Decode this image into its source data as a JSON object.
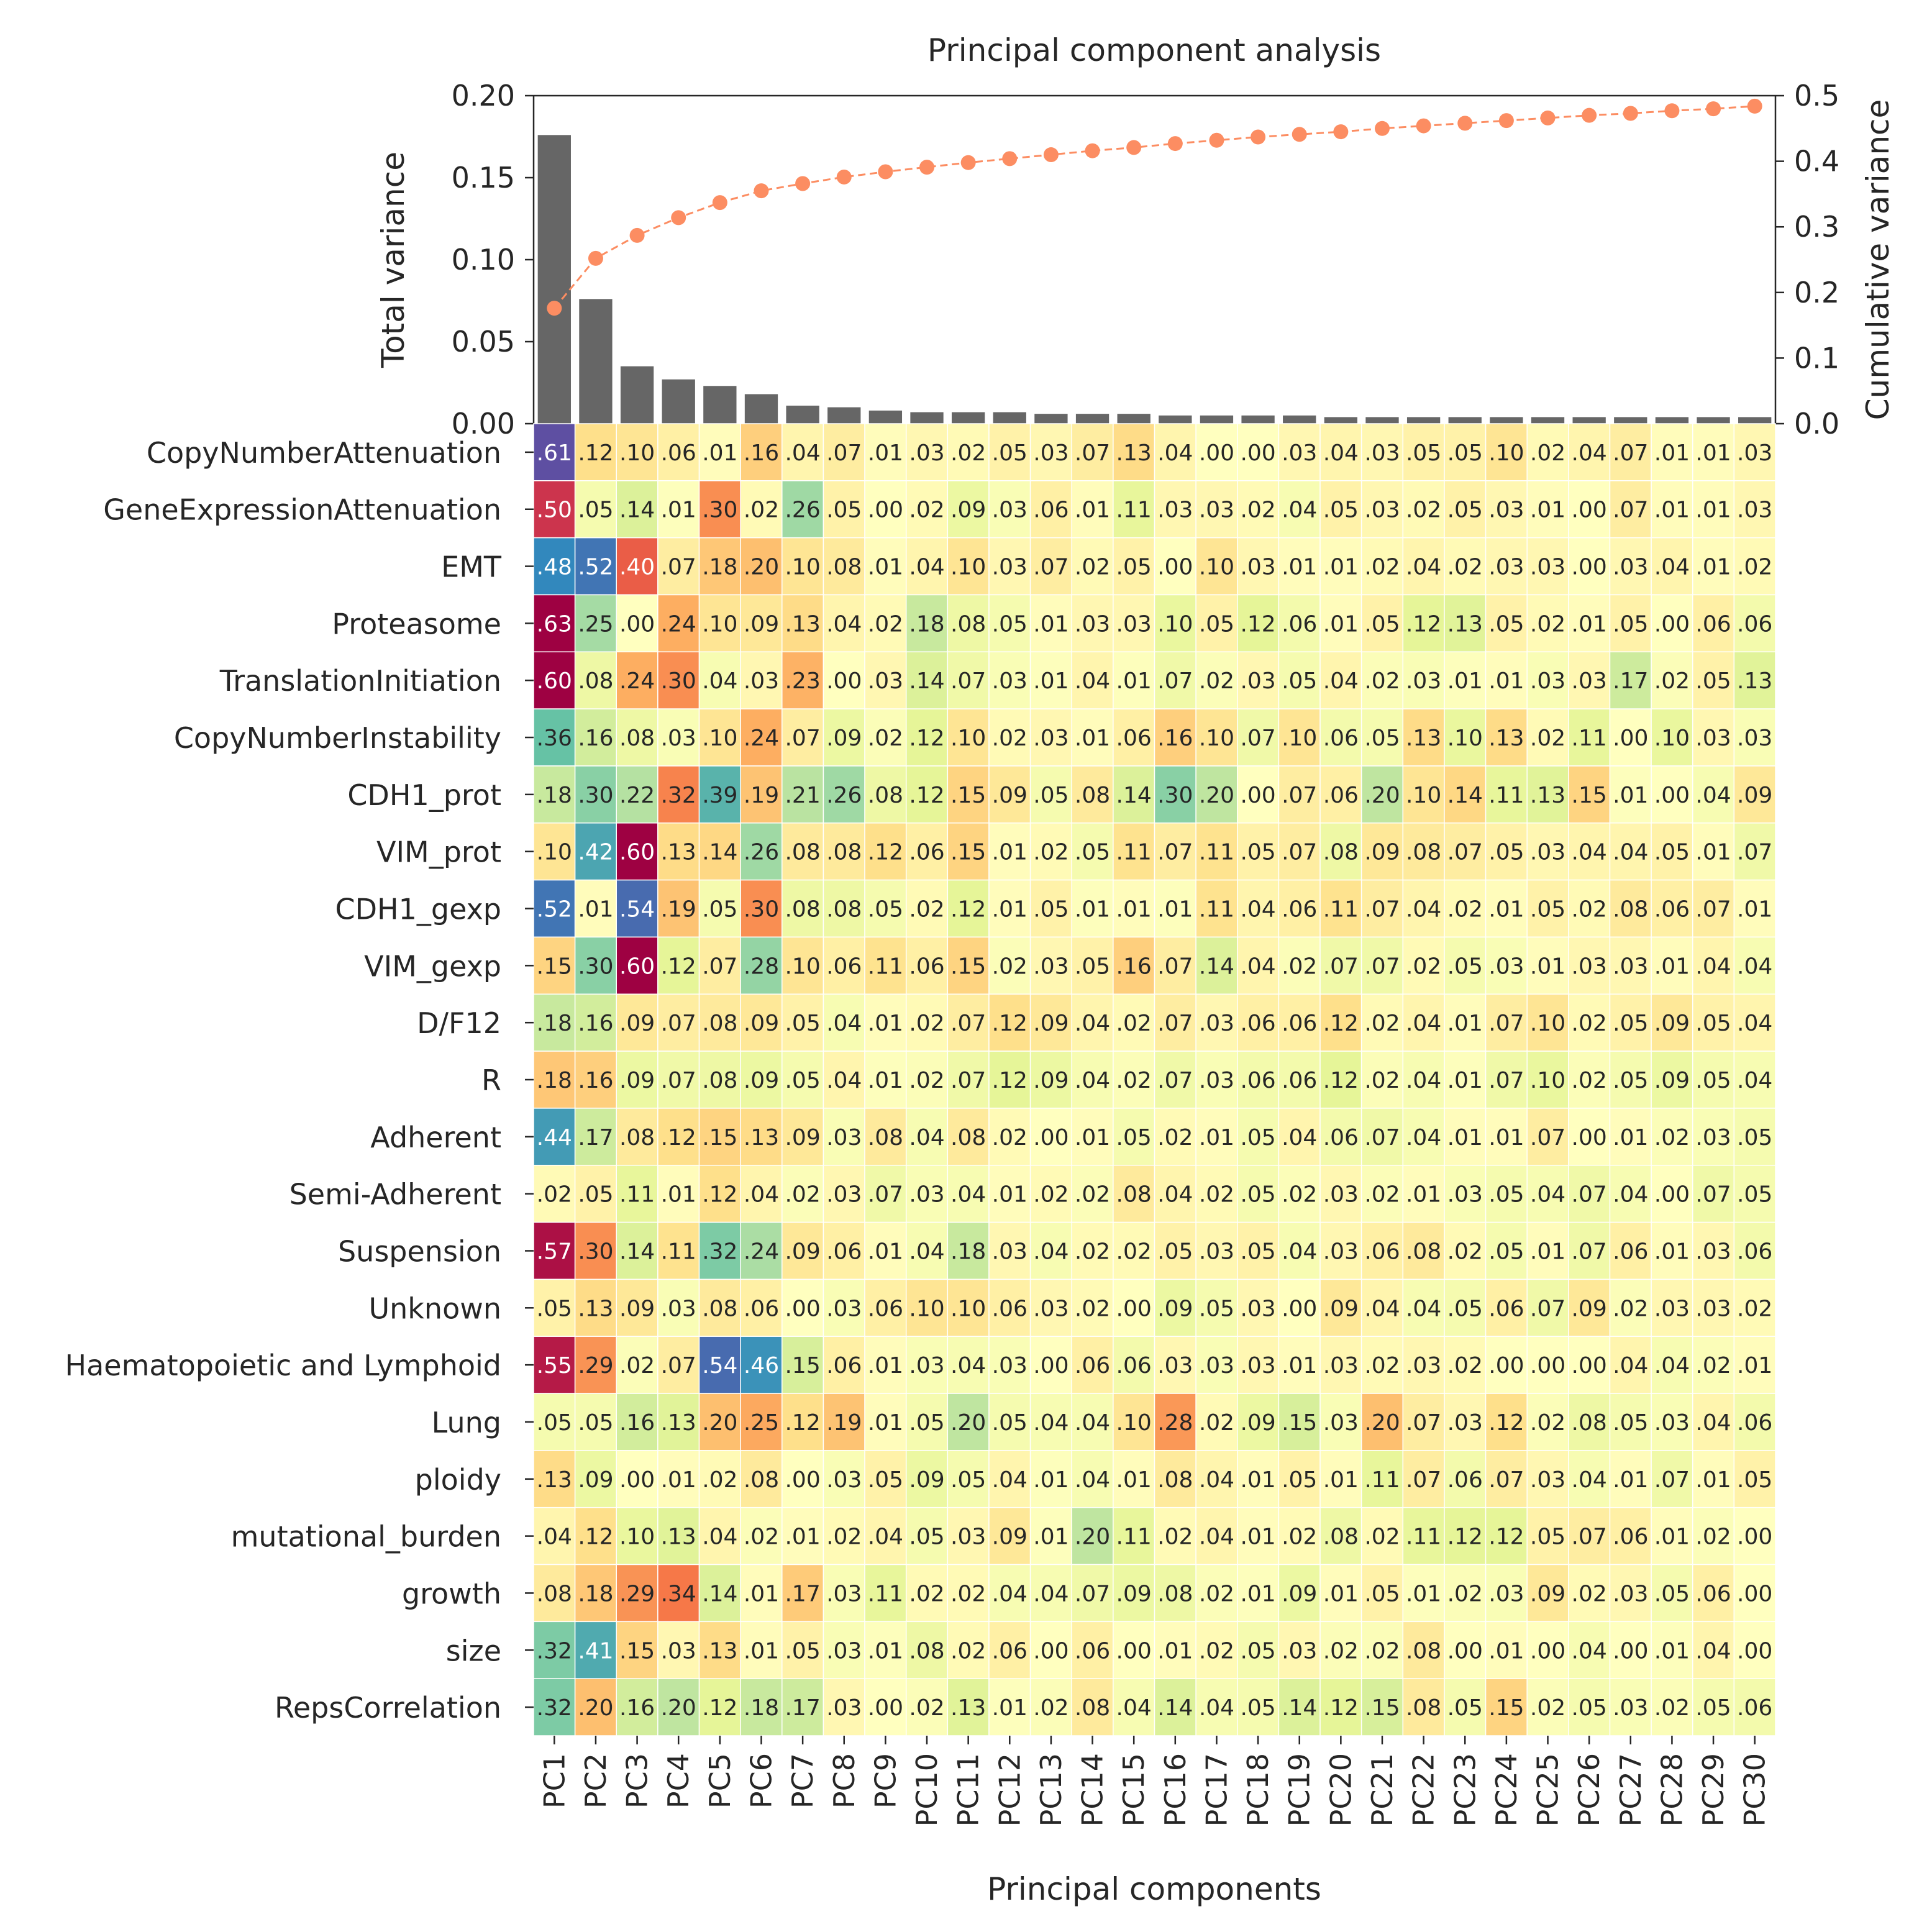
{
  "chart_data": [
    {
      "type": "bar",
      "title": "Principal component analysis",
      "ylabel": "Total variance",
      "ylabel_right": "Cumulative variance",
      "ylim": [
        0,
        0.2
      ],
      "ylim_right": [
        0,
        0.5
      ],
      "yticks": [
        "0.00",
        "0.05",
        "0.10",
        "0.15",
        "0.20"
      ],
      "yticks_right": [
        "0.0",
        "0.1",
        "0.2",
        "0.3",
        "0.4",
        "0.5"
      ],
      "categories": [
        "PC1",
        "PC2",
        "PC3",
        "PC4",
        "PC5",
        "PC6",
        "PC7",
        "PC8",
        "PC9",
        "PC10",
        "PC11",
        "PC12",
        "PC13",
        "PC14",
        "PC15",
        "PC16",
        "PC17",
        "PC18",
        "PC19",
        "PC20",
        "PC21",
        "PC22",
        "PC23",
        "PC24",
        "PC25",
        "PC26",
        "PC27",
        "PC28",
        "PC29",
        "PC30"
      ],
      "series": [
        {
          "name": "Total variance",
          "type": "bar",
          "color": "#666666",
          "values": [
            0.176,
            0.076,
            0.035,
            0.027,
            0.023,
            0.018,
            0.011,
            0.01,
            0.008,
            0.007,
            0.007,
            0.007,
            0.006,
            0.006,
            0.006,
            0.005,
            0.005,
            0.005,
            0.005,
            0.004,
            0.004,
            0.004,
            0.004,
            0.004,
            0.004,
            0.004,
            0.004,
            0.004,
            0.004,
            0.004
          ]
        },
        {
          "name": "Cumulative variance",
          "type": "line",
          "axis": "right",
          "color": "#fc8d62",
          "values": [
            0.176,
            0.252,
            0.287,
            0.314,
            0.337,
            0.355,
            0.366,
            0.376,
            0.384,
            0.391,
            0.398,
            0.404,
            0.41,
            0.416,
            0.421,
            0.427,
            0.432,
            0.437,
            0.441,
            0.445,
            0.45,
            0.454,
            0.458,
            0.462,
            0.466,
            0.47,
            0.473,
            0.477,
            0.48,
            0.484
          ]
        }
      ]
    },
    {
      "type": "heatmap",
      "xlabel": "Principal components",
      "colormap": "Spectral",
      "clim": [
        -0.6,
        0.6
      ],
      "x": [
        "PC1",
        "PC2",
        "PC3",
        "PC4",
        "PC5",
        "PC6",
        "PC7",
        "PC8",
        "PC9",
        "PC10",
        "PC11",
        "PC12",
        "PC13",
        "PC14",
        "PC15",
        "PC16",
        "PC17",
        "PC18",
        "PC19",
        "PC20",
        "PC21",
        "PC22",
        "PC23",
        "PC24",
        "PC25",
        "PC26",
        "PC27",
        "PC28",
        "PC29",
        "PC30"
      ],
      "y": [
        "CopyNumberAttenuation",
        "GeneExpressionAttenuation",
        "EMT",
        "Proteasome",
        "TranslationInitiation",
        "CopyNumberInstability",
        "CDH1_prot",
        "VIM_prot",
        "CDH1_gexp",
        "VIM_gexp",
        "D/F12",
        "R",
        "Adherent",
        "Semi-Adherent",
        "Suspension",
        "Unknown",
        "Haematopoietic and Lymphoid",
        "Lung",
        "ploidy",
        "mutational_burden",
        "growth",
        "size",
        "RepsCorrelation"
      ],
      "values": [
        [
          0.61,
          -0.12,
          -0.1,
          -0.06,
          -0.01,
          -0.16,
          -0.04,
          -0.07,
          -0.01,
          -0.03,
          -0.02,
          -0.05,
          -0.03,
          -0.07,
          -0.13,
          -0.04,
          -0.0,
          -0.0,
          -0.03,
          -0.04,
          -0.03,
          -0.05,
          -0.05,
          -0.1,
          -0.02,
          -0.04,
          -0.07,
          -0.01,
          -0.01,
          -0.03
        ],
        [
          -0.5,
          0.05,
          0.14,
          0.01,
          -0.3,
          -0.02,
          0.26,
          -0.05,
          -0.0,
          -0.02,
          0.09,
          0.03,
          -0.06,
          -0.01,
          0.11,
          -0.03,
          -0.03,
          -0.02,
          0.04,
          -0.05,
          -0.03,
          -0.02,
          -0.05,
          -0.03,
          -0.01,
          -0.0,
          -0.07,
          -0.01,
          -0.01,
          -0.03
        ],
        [
          0.48,
          0.52,
          -0.4,
          -0.07,
          -0.18,
          -0.2,
          -0.1,
          -0.08,
          -0.01,
          -0.04,
          -0.1,
          -0.03,
          -0.07,
          -0.02,
          -0.05,
          -0.0,
          -0.1,
          -0.03,
          -0.01,
          -0.01,
          -0.02,
          -0.04,
          -0.02,
          -0.03,
          -0.03,
          -0.0,
          -0.03,
          -0.04,
          -0.01,
          -0.02
        ],
        [
          -0.63,
          0.25,
          -0.0,
          -0.24,
          -0.1,
          -0.09,
          -0.13,
          -0.04,
          -0.02,
          0.18,
          0.08,
          0.05,
          -0.01,
          -0.03,
          -0.03,
          0.1,
          -0.05,
          0.12,
          0.06,
          -0.01,
          -0.05,
          0.12,
          0.13,
          -0.05,
          -0.02,
          -0.01,
          -0.05,
          -0.0,
          -0.06,
          0.06
        ],
        [
          -0.6,
          0.08,
          -0.24,
          -0.3,
          0.04,
          -0.03,
          -0.23,
          -0.0,
          -0.03,
          0.14,
          0.07,
          0.03,
          0.01,
          -0.04,
          0.01,
          0.07,
          0.02,
          -0.03,
          0.05,
          -0.04,
          0.02,
          0.03,
          0.01,
          -0.01,
          0.03,
          -0.03,
          0.17,
          0.02,
          -0.05,
          0.13
        ],
        [
          0.36,
          0.16,
          0.08,
          0.03,
          -0.1,
          -0.24,
          -0.07,
          0.09,
          0.02,
          0.12,
          -0.1,
          -0.02,
          -0.03,
          -0.01,
          -0.06,
          -0.16,
          -0.1,
          0.07,
          -0.1,
          0.06,
          0.05,
          -0.13,
          0.1,
          -0.13,
          -0.02,
          0.11,
          -0.0,
          0.1,
          -0.03,
          0.03
        ],
        [
          0.18,
          0.3,
          0.22,
          -0.32,
          0.39,
          -0.19,
          0.21,
          0.26,
          0.08,
          0.12,
          -0.15,
          -0.09,
          0.05,
          -0.08,
          0.14,
          0.3,
          0.2,
          -0.0,
          -0.07,
          -0.06,
          0.2,
          -0.1,
          -0.14,
          0.11,
          0.13,
          -0.15,
          0.01,
          -0.0,
          0.04,
          -0.09
        ],
        [
          -0.1,
          0.42,
          -0.6,
          -0.13,
          -0.14,
          0.26,
          -0.08,
          -0.08,
          -0.12,
          -0.06,
          -0.15,
          -0.01,
          -0.02,
          0.05,
          -0.11,
          -0.07,
          -0.11,
          -0.05,
          -0.07,
          0.08,
          -0.09,
          -0.08,
          -0.07,
          -0.05,
          -0.03,
          -0.04,
          -0.04,
          -0.05,
          -0.01,
          0.07
        ],
        [
          0.52,
          -0.01,
          0.54,
          -0.19,
          0.05,
          -0.3,
          0.08,
          0.08,
          0.05,
          -0.02,
          0.12,
          -0.01,
          -0.05,
          0.01,
          -0.01,
          0.01,
          -0.11,
          -0.04,
          -0.06,
          -0.11,
          -0.07,
          -0.04,
          -0.02,
          -0.01,
          -0.05,
          -0.02,
          -0.08,
          -0.06,
          -0.07,
          -0.01
        ],
        [
          -0.15,
          0.3,
          -0.6,
          0.12,
          -0.07,
          0.28,
          -0.1,
          -0.06,
          -0.11,
          -0.06,
          -0.15,
          0.02,
          -0.03,
          -0.05,
          -0.16,
          -0.07,
          0.14,
          -0.04,
          0.02,
          0.07,
          0.07,
          -0.02,
          0.05,
          0.03,
          -0.01,
          -0.03,
          -0.03,
          -0.01,
          -0.04,
          0.04
        ],
        [
          0.18,
          0.16,
          -0.09,
          -0.07,
          -0.08,
          -0.09,
          -0.05,
          0.04,
          -0.01,
          -0.02,
          -0.07,
          -0.12,
          -0.09,
          -0.04,
          -0.02,
          -0.07,
          -0.03,
          -0.06,
          -0.06,
          -0.12,
          -0.02,
          -0.04,
          -0.01,
          -0.07,
          -0.1,
          -0.02,
          -0.05,
          -0.09,
          -0.05,
          -0.04
        ],
        [
          -0.18,
          -0.16,
          0.09,
          0.07,
          0.08,
          0.09,
          0.05,
          -0.04,
          0.01,
          0.02,
          0.07,
          0.12,
          0.09,
          0.04,
          0.02,
          0.07,
          0.03,
          0.06,
          0.06,
          0.12,
          0.02,
          0.04,
          0.01,
          0.07,
          0.1,
          0.02,
          0.05,
          0.09,
          0.05,
          0.04
        ],
        [
          0.44,
          0.17,
          -0.08,
          -0.12,
          -0.15,
          -0.13,
          -0.09,
          0.03,
          -0.08,
          0.04,
          -0.08,
          -0.02,
          -0.0,
          -0.01,
          0.05,
          -0.02,
          -0.01,
          0.05,
          -0.04,
          0.06,
          0.07,
          0.04,
          -0.01,
          -0.01,
          -0.07,
          -0.0,
          -0.01,
          0.02,
          0.03,
          0.05
        ],
        [
          -0.02,
          -0.05,
          0.11,
          -0.01,
          -0.12,
          -0.04,
          0.02,
          -0.03,
          0.07,
          0.03,
          0.04,
          -0.01,
          -0.02,
          0.02,
          -0.08,
          -0.04,
          -0.02,
          0.05,
          0.02,
          -0.03,
          0.02,
          -0.01,
          0.03,
          0.05,
          0.04,
          0.07,
          0.04,
          -0.0,
          0.07,
          0.05
        ],
        [
          -0.57,
          -0.3,
          0.14,
          -0.11,
          0.32,
          0.24,
          -0.09,
          -0.06,
          -0.01,
          0.04,
          0.18,
          -0.03,
          0.04,
          -0.02,
          -0.02,
          -0.05,
          -0.03,
          -0.05,
          0.04,
          -0.03,
          -0.06,
          -0.08,
          -0.02,
          0.05,
          -0.01,
          0.07,
          -0.06,
          -0.01,
          -0.03,
          0.06
        ],
        [
          -0.05,
          -0.13,
          -0.09,
          0.03,
          -0.08,
          -0.06,
          -0.0,
          0.03,
          -0.06,
          -0.1,
          -0.1,
          -0.06,
          -0.03,
          -0.02,
          0.0,
          0.09,
          0.05,
          -0.03,
          0.0,
          -0.09,
          -0.04,
          0.04,
          0.05,
          -0.06,
          0.07,
          -0.09,
          0.02,
          -0.03,
          -0.03,
          -0.02
        ],
        [
          -0.55,
          -0.29,
          0.02,
          -0.07,
          0.54,
          0.46,
          0.15,
          -0.06,
          -0.01,
          0.03,
          0.04,
          0.03,
          -0.0,
          -0.06,
          0.06,
          -0.03,
          0.03,
          -0.03,
          -0.01,
          -0.03,
          -0.02,
          -0.03,
          -0.02,
          -0.0,
          -0.0,
          -0.0,
          -0.04,
          0.04,
          0.02,
          -0.01
        ],
        [
          0.05,
          0.05,
          0.16,
          0.13,
          -0.2,
          -0.25,
          -0.12,
          -0.19,
          -0.01,
          0.05,
          0.2,
          0.05,
          0.04,
          0.04,
          -0.1,
          -0.28,
          -0.02,
          0.09,
          0.15,
          0.03,
          -0.2,
          -0.07,
          -0.03,
          -0.12,
          0.02,
          0.08,
          0.05,
          0.03,
          -0.04,
          0.06
        ],
        [
          -0.13,
          0.09,
          -0.0,
          -0.01,
          -0.02,
          -0.08,
          -0.0,
          0.03,
          -0.05,
          0.09,
          0.05,
          -0.04,
          0.01,
          0.04,
          -0.01,
          -0.08,
          -0.04,
          -0.01,
          -0.05,
          -0.01,
          0.11,
          -0.07,
          0.06,
          -0.07,
          -0.03,
          0.04,
          -0.01,
          0.07,
          -0.01,
          -0.05
        ],
        [
          -0.04,
          -0.12,
          0.1,
          0.13,
          -0.04,
          0.02,
          -0.01,
          -0.02,
          -0.04,
          0.05,
          -0.03,
          -0.09,
          0.01,
          0.2,
          0.11,
          -0.02,
          -0.04,
          -0.01,
          -0.02,
          0.08,
          -0.02,
          0.11,
          0.12,
          0.12,
          -0.05,
          -0.07,
          -0.06,
          -0.01,
          0.02,
          0.0
        ],
        [
          -0.08,
          -0.18,
          -0.29,
          -0.34,
          0.14,
          -0.01,
          -0.17,
          0.03,
          0.11,
          -0.02,
          -0.02,
          0.04,
          0.04,
          0.07,
          0.09,
          0.08,
          0.02,
          0.01,
          0.09,
          -0.01,
          -0.05,
          0.01,
          0.02,
          0.03,
          -0.09,
          -0.02,
          -0.03,
          0.05,
          -0.06,
          0.0
        ],
        [
          0.32,
          0.41,
          -0.15,
          -0.03,
          -0.13,
          -0.01,
          -0.05,
          0.03,
          0.01,
          0.08,
          -0.02,
          -0.06,
          0.0,
          -0.06,
          -0.0,
          -0.01,
          -0.02,
          0.05,
          -0.03,
          0.02,
          0.02,
          -0.08,
          0.0,
          -0.01,
          -0.0,
          0.04,
          0.0,
          0.01,
          -0.04,
          0.0
        ],
        [
          0.32,
          -0.2,
          0.16,
          0.2,
          0.12,
          0.18,
          0.17,
          -0.03,
          0.0,
          0.02,
          0.13,
          0.01,
          0.02,
          -0.08,
          0.04,
          0.14,
          0.04,
          0.05,
          0.14,
          0.12,
          0.15,
          -0.08,
          0.05,
          -0.15,
          0.02,
          0.05,
          0.03,
          0.02,
          0.05,
          0.06
        ]
      ]
    }
  ]
}
